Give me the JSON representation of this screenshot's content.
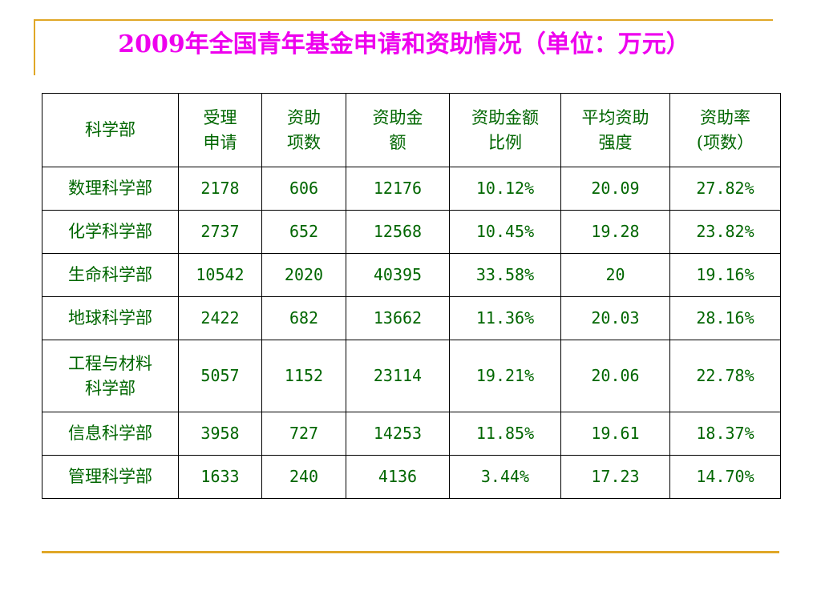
{
  "title": "2009年全国青年基金申请和资助情况（单位：万元）",
  "table": {
    "headers": [
      "科学部",
      "受理\n申请",
      "资助\n项数",
      "资助金\n额",
      "资助金额\n比例",
      "平均资助\n强度",
      "资助率\n(项数）"
    ],
    "rows": [
      [
        "数理科学部",
        "2178",
        "606",
        "12176",
        "10.12%",
        "20.09",
        "27.82%"
      ],
      [
        "化学科学部",
        "2737",
        "652",
        "12568",
        "10.45%",
        "19.28",
        "23.82%"
      ],
      [
        "生命科学部",
        "10542",
        "2020",
        "40395",
        "33.58%",
        "20",
        "19.16%"
      ],
      [
        "地球科学部",
        "2422",
        "682",
        "13662",
        "11.36%",
        "20.03",
        "28.16%"
      ],
      [
        "工程与材料\n科学部",
        "5057",
        "1152",
        "23114",
        "19.21%",
        "20.06",
        "22.78%"
      ],
      [
        "信息科学部",
        "3958",
        "727",
        "14253",
        "11.85%",
        "19.61",
        "18.37%"
      ],
      [
        "管理科学部",
        "1633",
        "240",
        "4136",
        "3.44%",
        "17.23",
        "14.70%"
      ]
    ]
  },
  "colors": {
    "title": "#ee00ee",
    "table_text": "#006600",
    "accent_lines": "#e0a727",
    "borders": "#000000"
  }
}
